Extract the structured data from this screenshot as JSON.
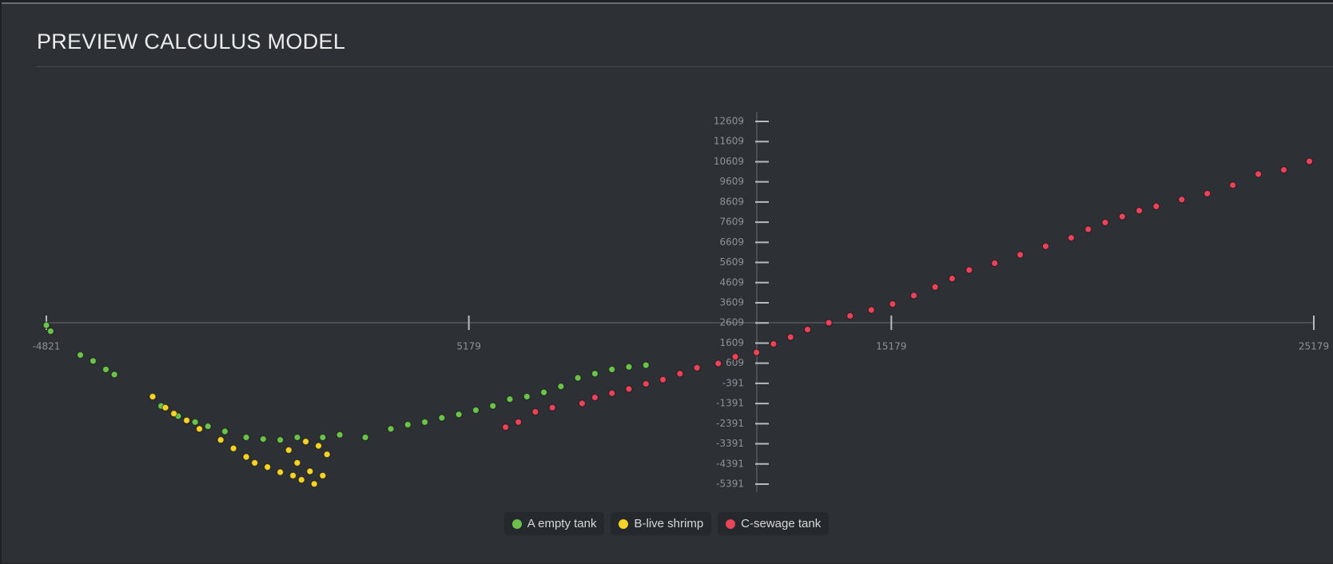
{
  "title": "PREVIEW CALCULUS MODEL",
  "chart_data": {
    "type": "scatter",
    "xlim": [
      -4821,
      25179
    ],
    "xticks": [
      -4821,
      5179,
      15179,
      25179
    ],
    "ylim": [
      -5391,
      12609
    ],
    "yticks": [
      -5391,
      -4391,
      -3391,
      -2391,
      -1391,
      -391,
      609,
      1609,
      2609,
      3609,
      4609,
      5609,
      6609,
      7609,
      8609,
      9609,
      10609,
      11609,
      12609
    ],
    "series": [
      {
        "name": "A empty tank",
        "color": "#6cc24a",
        "x": [
          -4821,
          -4720,
          -4016,
          -3714,
          -3412,
          -3211,
          -2104,
          -1701,
          -1299,
          -996,
          -594,
          -90,
          312,
          715,
          1118,
          1721,
          2124,
          2728,
          3332,
          3734,
          4137,
          4540,
          4942,
          5345,
          5747,
          6150,
          6553,
          6955,
          7358,
          7760,
          8163,
          8566,
          8968,
          9371
        ],
        "values": [
          2493,
          2198,
          1017,
          722,
          300,
          47,
          -1513,
          -2017,
          -2312,
          -2523,
          -2776,
          -3071,
          -3155,
          -3197,
          -3071,
          -3071,
          -2944,
          -3071,
          -2649,
          -2438,
          -2312,
          -2102,
          -1933,
          -1722,
          -1511,
          -1174,
          -1048,
          -837,
          -542,
          -120,
          90,
          301,
          427,
          512
        ]
      },
      {
        "name": "B-live shrimp",
        "color": "#f5d327",
        "x": [
          -2305,
          -2003,
          -1802,
          -1500,
          -1198,
          -694,
          -392,
          -90,
          111,
          413,
          715,
          1017,
          1218,
          1520,
          916,
          1319,
          1621,
          1822,
          1117,
          1419,
          1721
        ],
        "values": [
          -1048,
          -1596,
          -1891,
          -2228,
          -2649,
          -3197,
          -3619,
          -4040,
          -4335,
          -4546,
          -4799,
          -4968,
          -5178,
          -5380,
          -3703,
          -3281,
          -3492,
          -3914,
          -4335,
          -4757,
          -4968
        ]
      },
      {
        "name": "C-sewage tank",
        "color": "#e8445a",
        "x": [
          6049,
          6351,
          6754,
          7156,
          7861,
          8163,
          8566,
          8968,
          9371,
          9773,
          10176,
          10579,
          11082,
          11485,
          11988,
          12391,
          12794,
          13196,
          13699,
          14202,
          14705,
          15209,
          15712,
          16215,
          16618,
          17021,
          17625,
          18228,
          18832,
          19436,
          19839,
          20241,
          20644,
          21047,
          21449,
          22053,
          22657,
          23261,
          23865,
          24469,
          25073
        ],
        "values": [
          -2565,
          -2312,
          -1806,
          -1596,
          -1385,
          -1090,
          -879,
          -668,
          -415,
          -205,
          90,
          385,
          596,
          934,
          1144,
          1566,
          1903,
          2282,
          2619,
          2957,
          3252,
          3547,
          3968,
          4390,
          4811,
          5233,
          5570,
          5991,
          6413,
          6834,
          7256,
          7593,
          7888,
          8183,
          8394,
          8731,
          9026,
          9448,
          9995,
          10206,
          10628
        ]
      }
    ]
  }
}
